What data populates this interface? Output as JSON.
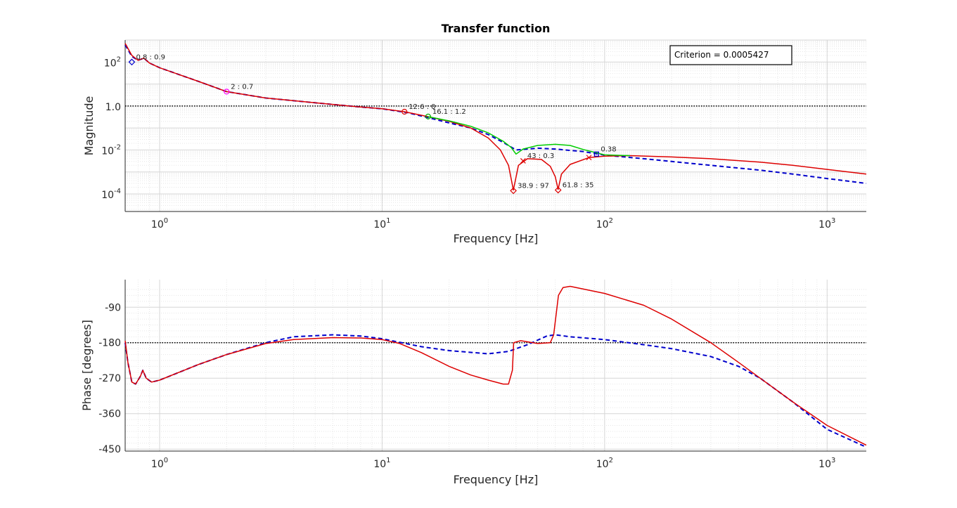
{
  "chart_data": [
    {
      "type": "line",
      "title": "Transfer function",
      "xlabel": "Frequency [Hz]",
      "ylabel": "Magnitude",
      "xscale": "log",
      "yscale": "log",
      "xlim": [
        0.7,
        1500
      ],
      "ylim_log10": [
        -4.8,
        3.0
      ],
      "x_ticks": [
        {
          "value": 1,
          "base": "10",
          "exp": "0"
        },
        {
          "value": 10,
          "base": "10",
          "exp": "1"
        },
        {
          "value": 100,
          "base": "10",
          "exp": "2"
        },
        {
          "value": 1000,
          "base": "10",
          "exp": "3"
        }
      ],
      "y_ticks": [
        {
          "value": 100,
          "base": "10",
          "exp": "2"
        },
        {
          "value": 1,
          "base": "10",
          "exp": "0",
          "label": "1.0"
        },
        {
          "value": 0.01,
          "base": "10",
          "exp": "-2"
        },
        {
          "value": 0.0001,
          "base": "10",
          "exp": "-4"
        }
      ],
      "grid": true,
      "legend_box": {
        "text": "Criterion = 0.0005427",
        "position": "top-right"
      },
      "reference_line": {
        "y": 1,
        "style": "black dotted"
      },
      "series": [
        {
          "color": "#0000cc",
          "style": "dashed",
          "points": [
            [
              0.7,
              600
            ],
            [
              0.75,
              180
            ],
            [
              0.8,
              120
            ],
            [
              0.85,
              150
            ],
            [
              0.9,
              90
            ],
            [
              1.0,
              55
            ],
            [
              1.5,
              13
            ],
            [
              2,
              4.5
            ],
            [
              3,
              2.3
            ],
            [
              5,
              1.4
            ],
            [
              8,
              0.9
            ],
            [
              10,
              0.75
            ],
            [
              13,
              0.5
            ],
            [
              16,
              0.3
            ],
            [
              20,
              0.17
            ],
            [
              25,
              0.1
            ],
            [
              30,
              0.05
            ],
            [
              35,
              0.022
            ],
            [
              40,
              0.01
            ],
            [
              45,
              0.011
            ],
            [
              50,
              0.012
            ],
            [
              60,
              0.011
            ],
            [
              70,
              0.0095
            ],
            [
              80,
              0.0085
            ],
            [
              100,
              0.0058
            ],
            [
              150,
              0.004
            ],
            [
              200,
              0.003
            ],
            [
              300,
              0.002
            ],
            [
              500,
              0.0012
            ],
            [
              700,
              0.0008
            ],
            [
              1000,
              0.0005
            ],
            [
              1500,
              0.0003
            ]
          ]
        },
        {
          "color": "#dd0000",
          "style": "solid",
          "points": [
            [
              0.7,
              700
            ],
            [
              0.75,
              200
            ],
            [
              0.8,
              120
            ],
            [
              0.85,
              150
            ],
            [
              0.9,
              90
            ],
            [
              1.0,
              55
            ],
            [
              1.5,
              13
            ],
            [
              2,
              4.5
            ],
            [
              3,
              2.3
            ],
            [
              5,
              1.4
            ],
            [
              8,
              0.9
            ],
            [
              10,
              0.75
            ],
            [
              12.6,
              0.55
            ],
            [
              16,
              0.33
            ],
            [
              20,
              0.2
            ],
            [
              25,
              0.1
            ],
            [
              30,
              0.035
            ],
            [
              34,
              0.01
            ],
            [
              37,
              0.002
            ],
            [
              38.9,
              0.00015
            ],
            [
              41,
              0.002
            ],
            [
              45,
              0.004
            ],
            [
              52,
              0.0037
            ],
            [
              57,
              0.0018
            ],
            [
              60,
              0.0006
            ],
            [
              61.8,
              0.00016
            ],
            [
              64,
              0.0008
            ],
            [
              70,
              0.0022
            ],
            [
              85,
              0.0045
            ],
            [
              100,
              0.0052
            ],
            [
              130,
              0.0055
            ],
            [
              200,
              0.0048
            ],
            [
              300,
              0.004
            ],
            [
              500,
              0.0028
            ],
            [
              700,
              0.002
            ],
            [
              1000,
              0.0013
            ],
            [
              1500,
              0.0008
            ]
          ]
        },
        {
          "color": "#00cc00",
          "style": "solid",
          "points": [
            [
              16,
              0.33
            ],
            [
              20,
              0.21
            ],
            [
              25,
              0.12
            ],
            [
              30,
              0.06
            ],
            [
              35,
              0.025
            ],
            [
              38,
              0.013
            ],
            [
              40,
              0.0065
            ],
            [
              43,
              0.011
            ],
            [
              50,
              0.016
            ],
            [
              60,
              0.018
            ],
            [
              70,
              0.016
            ],
            [
              80,
              0.0105
            ],
            [
              100,
              0.006
            ],
            [
              130,
              0.0055
            ]
          ]
        }
      ],
      "markers": [
        {
          "x": 0.75,
          "y": 100,
          "label": "0.8 : 0.9",
          "symbol": "diamond",
          "color": "#0000cc"
        },
        {
          "x": 2,
          "y": 4.5,
          "label": "2 : 0.7",
          "symbol": "circle",
          "color": "#ff00ff"
        },
        {
          "x": 12.6,
          "y": 0.55,
          "label": "12.6 : 0",
          "symbol": "circle",
          "color": "#dd0000"
        },
        {
          "x": 16.1,
          "y": 0.33,
          "label": "16.1 : 1.2",
          "symbol": "circle",
          "color": "#00aa00"
        },
        {
          "x": 43,
          "y": 0.0032,
          "label": "43 : 0.3",
          "symbol": "x",
          "color": "#dd0000"
        },
        {
          "x": 38.9,
          "y": 0.00014,
          "label": "38.9 : 97",
          "symbol": "diamond",
          "color": "#dd0000"
        },
        {
          "x": 61.8,
          "y": 0.00015,
          "label": "61.8 : 35",
          "symbol": "diamond",
          "color": "#dd0000"
        },
        {
          "x": 85,
          "y": 0.0045,
          "label": "",
          "symbol": "x",
          "color": "#dd0000"
        },
        {
          "x": 92,
          "y": 0.0065,
          "label": "0.38",
          "symbol": "square",
          "color": "#0000cc"
        }
      ]
    },
    {
      "type": "line",
      "title": "",
      "xlabel": "Frequency [Hz]",
      "ylabel": "Phase [degrees]",
      "xscale": "log",
      "yscale": "linear",
      "xlim": [
        0.7,
        1500
      ],
      "ylim": [
        -455,
        -20
      ],
      "x_ticks": [
        {
          "value": 1,
          "base": "10",
          "exp": "0"
        },
        {
          "value": 10,
          "base": "10",
          "exp": "1"
        },
        {
          "value": 100,
          "base": "10",
          "exp": "2"
        },
        {
          "value": 1000,
          "base": "10",
          "exp": "3"
        }
      ],
      "y_ticks": [
        {
          "value": -90,
          "label": "-90"
        },
        {
          "value": -180,
          "label": "-180"
        },
        {
          "value": -270,
          "label": "-270"
        },
        {
          "value": -360,
          "label": "-360"
        },
        {
          "value": -450,
          "label": "-450"
        }
      ],
      "grid": true,
      "reference_line": {
        "y": -180,
        "style": "black dotted"
      },
      "series": [
        {
          "color": "#0000cc",
          "style": "dashed",
          "points": [
            [
              0.7,
              -180
            ],
            [
              0.72,
              -230
            ],
            [
              0.75,
              -280
            ],
            [
              0.78,
              -285
            ],
            [
              0.82,
              -265
            ],
            [
              0.84,
              -250
            ],
            [
              0.87,
              -270
            ],
            [
              0.92,
              -280
            ],
            [
              1.0,
              -275
            ],
            [
              1.5,
              -235
            ],
            [
              2,
              -210
            ],
            [
              3,
              -180
            ],
            [
              4,
              -165
            ],
            [
              6,
              -160
            ],
            [
              8,
              -163
            ],
            [
              10,
              -170
            ],
            [
              15,
              -190
            ],
            [
              20,
              -200
            ],
            [
              30,
              -208
            ],
            [
              37,
              -202
            ],
            [
              45,
              -185
            ],
            [
              55,
              -163
            ],
            [
              60,
              -160
            ],
            [
              70,
              -165
            ],
            [
              100,
              -172
            ],
            [
              150,
              -185
            ],
            [
              200,
              -195
            ],
            [
              300,
              -215
            ],
            [
              400,
              -240
            ],
            [
              500,
              -270
            ],
            [
              700,
              -330
            ],
            [
              1000,
              -400
            ],
            [
              1500,
              -445
            ]
          ]
        },
        {
          "color": "#dd0000",
          "style": "solid",
          "points": [
            [
              0.7,
              -175
            ],
            [
              0.72,
              -230
            ],
            [
              0.75,
              -280
            ],
            [
              0.78,
              -285
            ],
            [
              0.82,
              -265
            ],
            [
              0.84,
              -250
            ],
            [
              0.87,
              -270
            ],
            [
              0.92,
              -280
            ],
            [
              1.0,
              -275
            ],
            [
              1.5,
              -235
            ],
            [
              2,
              -210
            ],
            [
              3,
              -182
            ],
            [
              4,
              -172
            ],
            [
              6,
              -167
            ],
            [
              8,
              -168
            ],
            [
              10,
              -172
            ],
            [
              12,
              -182
            ],
            [
              15,
              -205
            ],
            [
              20,
              -240
            ],
            [
              25,
              -262
            ],
            [
              30,
              -275
            ],
            [
              35,
              -285
            ],
            [
              37,
              -285
            ],
            [
              38.5,
              -250
            ],
            [
              39,
              -180
            ],
            [
              42,
              -175
            ],
            [
              50,
              -182
            ],
            [
              57,
              -180
            ],
            [
              59,
              -160
            ],
            [
              62,
              -60
            ],
            [
              65,
              -40
            ],
            [
              70,
              -37
            ],
            [
              100,
              -55
            ],
            [
              150,
              -85
            ],
            [
              200,
              -120
            ],
            [
              300,
              -180
            ],
            [
              400,
              -230
            ],
            [
              500,
              -270
            ],
            [
              700,
              -330
            ],
            [
              1000,
              -390
            ],
            [
              1500,
              -440
            ]
          ]
        }
      ],
      "markers": []
    }
  ]
}
